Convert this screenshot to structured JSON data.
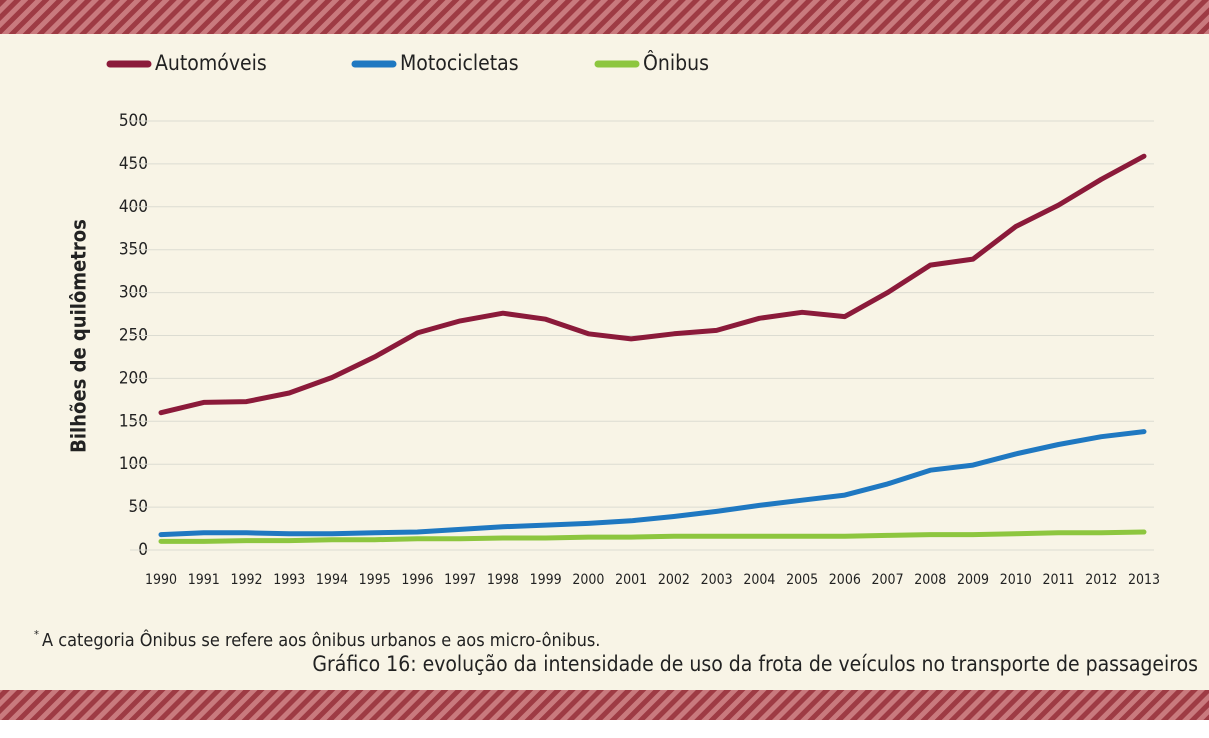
{
  "chart_data": {
    "type": "line",
    "y_label": "Bilhões de quilômetros",
    "categories": [
      "1990",
      "1991",
      "1992",
      "1993",
      "1994",
      "1995",
      "1996",
      "1997",
      "1998",
      "1999",
      "2000",
      "2001",
      "2002",
      "2003",
      "2004",
      "2005",
      "2006",
      "2007",
      "2008",
      "2009",
      "2010",
      "2011",
      "2012",
      "2013"
    ],
    "series": [
      {
        "name": "Automóveis",
        "color": "#8b1a3a",
        "values": [
          160,
          172,
          173,
          183,
          201,
          225,
          253,
          267,
          276,
          269,
          252,
          246,
          252,
          256,
          270,
          277,
          272,
          300,
          332,
          339,
          377,
          402,
          432,
          459
        ]
      },
      {
        "name": "Motocicletas",
        "color": "#1f78c1",
        "values": [
          18,
          20,
          20,
          19,
          19,
          20,
          21,
          24,
          27,
          29,
          31,
          34,
          39,
          45,
          52,
          58,
          64,
          77,
          93,
          99,
          112,
          123,
          132,
          138
        ]
      },
      {
        "name": "Ônibus",
        "color": "#8dc63f",
        "values": [
          10,
          10,
          11,
          11,
          12,
          12,
          13,
          13,
          14,
          14,
          15,
          15,
          16,
          16,
          16,
          16,
          16,
          17,
          18,
          18,
          19,
          20,
          20,
          21
        ]
      }
    ],
    "ylim": [
      0,
      500
    ],
    "yticks": [
      0,
      50,
      100,
      150,
      200,
      250,
      300,
      350,
      400,
      450,
      500
    ],
    "grid": true,
    "legend": "top-left",
    "footnote_marker": "*",
    "footnote": "A categoria Ônibus se refere aos ônibus urbanos e aos micro-ônibus.",
    "caption": "Gráfico 16: evolução da intensidade de uso da frota de veículos no transporte de passageiros"
  }
}
